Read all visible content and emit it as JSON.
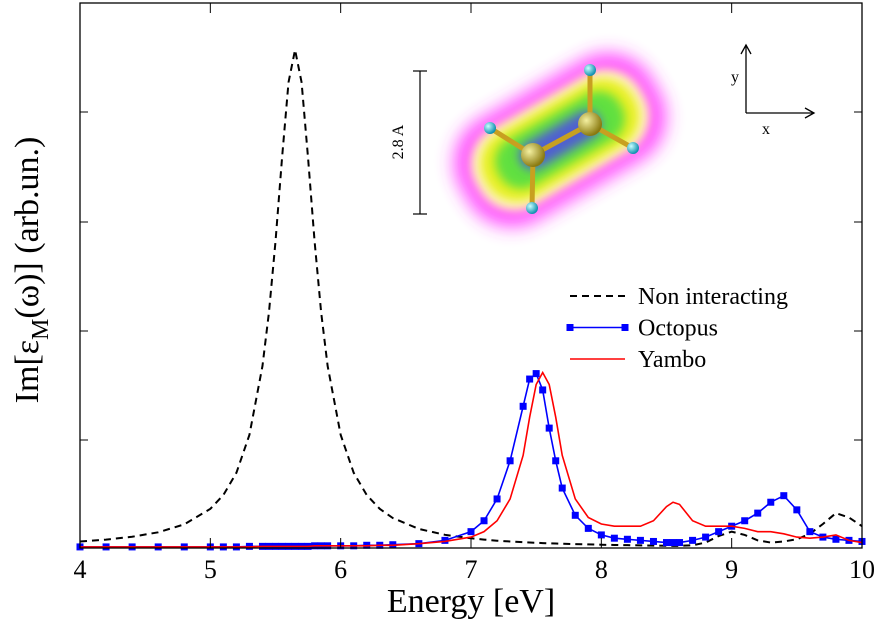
{
  "chart_data": {
    "type": "line",
    "xlabel": "Energy [eV]",
    "ylabel": [
      "Im[ε",
      "M",
      "(ω)] (arb.un.)"
    ],
    "annotations": [
      "2.8 A",
      "y",
      "x"
    ],
    "x": [
      4.0,
      4.2,
      4.4,
      4.6,
      4.8,
      5.0,
      5.1,
      5.2,
      5.3,
      5.4,
      5.45,
      5.5,
      5.55,
      5.6,
      5.65,
      5.7,
      5.75,
      5.8,
      5.85,
      5.9,
      6.0,
      6.1,
      6.2,
      6.3,
      6.4,
      6.6,
      6.8,
      7.0,
      7.1,
      7.2,
      7.3,
      7.4,
      7.45,
      7.5,
      7.55,
      7.6,
      7.65,
      7.7,
      7.8,
      7.9,
      8.0,
      8.1,
      8.2,
      8.3,
      8.4,
      8.5,
      8.55,
      8.6,
      8.7,
      8.8,
      8.9,
      9.0,
      9.1,
      9.2,
      9.3,
      9.4,
      9.5,
      9.6,
      9.7,
      9.8,
      9.9,
      10.0
    ],
    "series": [
      {
        "name": "Non interacting",
        "color": "#000000",
        "style": "dashed",
        "marker": "none",
        "values": [
          0.06,
          0.077,
          0.103,
          0.144,
          0.217,
          0.359,
          0.486,
          0.69,
          1.038,
          1.67,
          2.164,
          2.812,
          3.576,
          4.273,
          4.57,
          4.273,
          3.576,
          2.812,
          2.164,
          1.67,
          1.038,
          0.69,
          0.486,
          0.359,
          0.275,
          0.175,
          0.121,
          0.089,
          0.077,
          0.067,
          0.06,
          0.053,
          0.05,
          0.048,
          0.045,
          0.043,
          0.041,
          0.039,
          0.036,
          0.033,
          0.03,
          0.028,
          0.026,
          0.024,
          0.022,
          0.021,
          0.02,
          0.02,
          0.025,
          0.05,
          0.11,
          0.15,
          0.12,
          0.07,
          0.05,
          0.06,
          0.08,
          0.13,
          0.22,
          0.32,
          0.28,
          0.2
        ]
      },
      {
        "name": "Octopus",
        "color": "#0000ff",
        "style": "solid",
        "marker": "square",
        "values": [
          0.01,
          0.01,
          0.01,
          0.01,
          0.01,
          0.01,
          0.01,
          0.01,
          0.015,
          0.015,
          0.015,
          0.015,
          0.015,
          0.015,
          0.015,
          0.015,
          0.015,
          0.02,
          0.02,
          0.02,
          0.02,
          0.02,
          0.025,
          0.025,
          0.03,
          0.04,
          0.07,
          0.15,
          0.25,
          0.45,
          0.8,
          1.3,
          1.55,
          1.6,
          1.45,
          1.1,
          0.8,
          0.55,
          0.3,
          0.18,
          0.12,
          0.09,
          0.08,
          0.07,
          0.06,
          0.05,
          0.05,
          0.05,
          0.07,
          0.1,
          0.15,
          0.2,
          0.25,
          0.32,
          0.42,
          0.48,
          0.35,
          0.15,
          0.1,
          0.08,
          0.07,
          0.06
        ]
      },
      {
        "name": "Yambo",
        "color": "#ff0000",
        "style": "solid",
        "marker": "none",
        "values": [
          0.01,
          0.01,
          0.01,
          0.01,
          0.01,
          0.01,
          0.01,
          0.01,
          0.01,
          0.015,
          0.015,
          0.015,
          0.015,
          0.015,
          0.015,
          0.015,
          0.015,
          0.02,
          0.02,
          0.02,
          0.02,
          0.02,
          0.02,
          0.025,
          0.025,
          0.04,
          0.06,
          0.1,
          0.15,
          0.25,
          0.45,
          0.85,
          1.2,
          1.5,
          1.61,
          1.5,
          1.2,
          0.85,
          0.45,
          0.28,
          0.22,
          0.2,
          0.2,
          0.2,
          0.25,
          0.38,
          0.42,
          0.4,
          0.25,
          0.2,
          0.2,
          0.2,
          0.18,
          0.15,
          0.15,
          0.13,
          0.1,
          0.09,
          0.1,
          0.12,
          0.07,
          0.05
        ]
      }
    ],
    "xlim": [
      4,
      10
    ],
    "xticks": [
      4,
      5,
      6,
      7,
      8,
      9,
      10
    ],
    "ylim": [
      0,
      5
    ],
    "legend": "right"
  }
}
